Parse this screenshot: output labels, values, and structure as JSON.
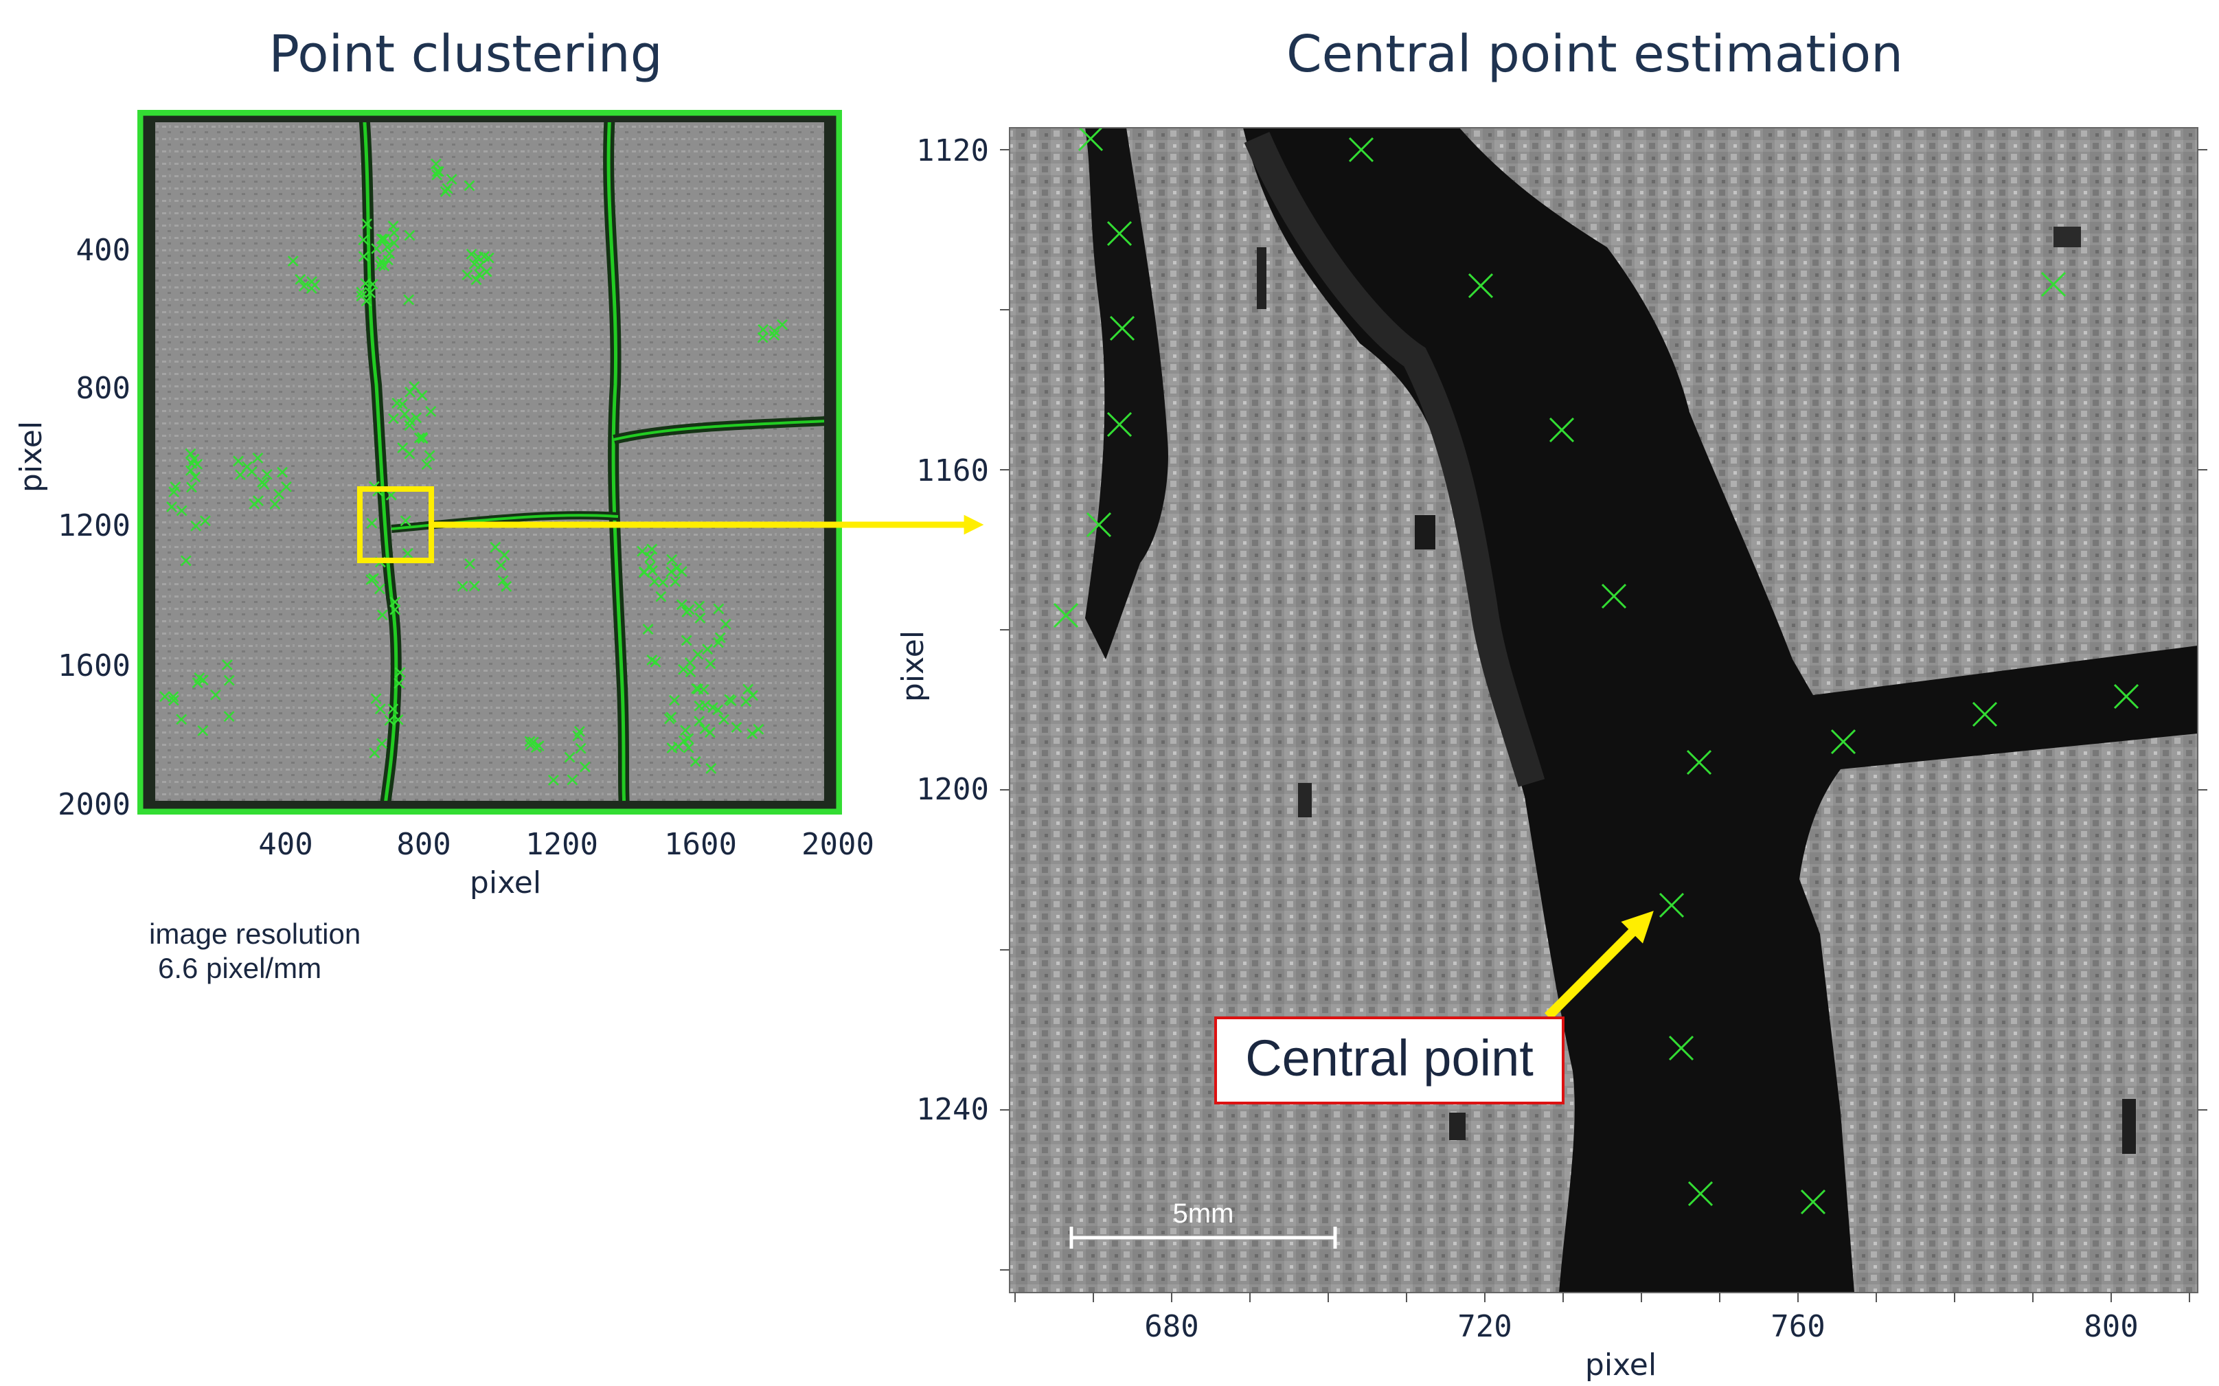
{
  "left_panel": {
    "title": "Point clustering",
    "x_ticks": [
      "400",
      "800",
      "1200",
      "1600",
      "2000"
    ],
    "y_ticks": [
      "400",
      "800",
      "1200",
      "1600",
      "2000"
    ],
    "xlabel": "pixel",
    "ylabel": "pixel",
    "note_line1": "image resolution",
    "note_line2": "6.6 pixel/mm"
  },
  "right_panel": {
    "title": "Central point estimation",
    "x_ticks": [
      "680",
      "720",
      "760",
      "800"
    ],
    "y_ticks": [
      "1120",
      "1160",
      "1200",
      "1240"
    ],
    "xlabel": "pixel",
    "ylabel": "pixel",
    "callout": "Central point",
    "scale_bar": "5mm"
  },
  "colors": {
    "marker": "#33dd33",
    "highlight": "#ffee00",
    "callout_border": "#dd1111",
    "title": "#1f3350"
  }
}
